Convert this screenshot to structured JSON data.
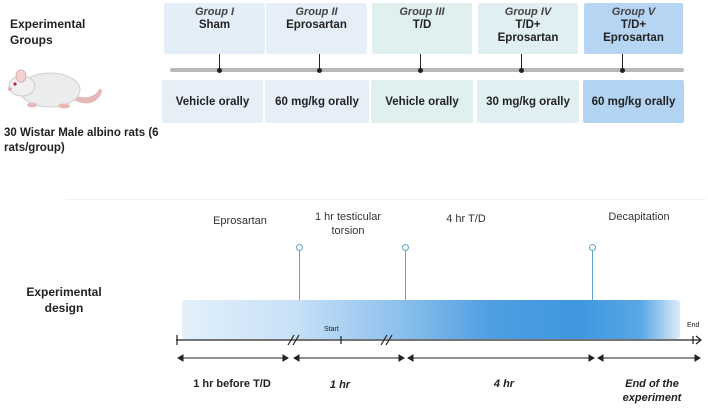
{
  "groups_section": {
    "title": "Experimental Groups",
    "rats_caption": "30 Wistar Male albino rats (6 rats/group)",
    "groups": [
      {
        "name": "Group I",
        "treatment": "Sham",
        "dose": "Vehicle orally",
        "color": "#e4eef8",
        "dose_color": "#e6eff8"
      },
      {
        "name": "Group II",
        "treatment": "Eprosartan",
        "dose": "60 mg/kg orally",
        "color": "#e6eff8",
        "dose_color": "#e6eff8"
      },
      {
        "name": "Group III",
        "treatment": "T/D",
        "dose": "Vehicle orally",
        "color": "#dff0ee",
        "dose_color": "#dff0ee"
      },
      {
        "name": "Group IV",
        "treatment": "T/D+\nEprosartan",
        "dose": "30 mg/kg orally",
        "color": "#e0eff1",
        "dose_color": "#e0eff1"
      },
      {
        "name": "Group V",
        "treatment": "T/D+\nEprosartan",
        "dose": "60 mg/kg orally",
        "color": "#b6d5f3",
        "dose_color": "#b3d3f3"
      }
    ]
  },
  "design_section": {
    "title": "Experimental design",
    "events": [
      {
        "label": "Eprosartan"
      },
      {
        "label": "1 hr  testicular\ntorsion"
      },
      {
        "label": "4 hr T/D"
      },
      {
        "label": "Decapitation"
      }
    ],
    "start_label": "Start",
    "end_label": "End",
    "segments": [
      {
        "label": "1 hr before T/D"
      },
      {
        "label": "1 hr"
      },
      {
        "label": "4 hr"
      },
      {
        "label": "End of the\nexperiment"
      }
    ],
    "colors": {
      "band_light": "#dcecfa",
      "band_dark": "#3f97df",
      "pin": "#5ea2c4",
      "connector": "#b8b8b8"
    }
  }
}
